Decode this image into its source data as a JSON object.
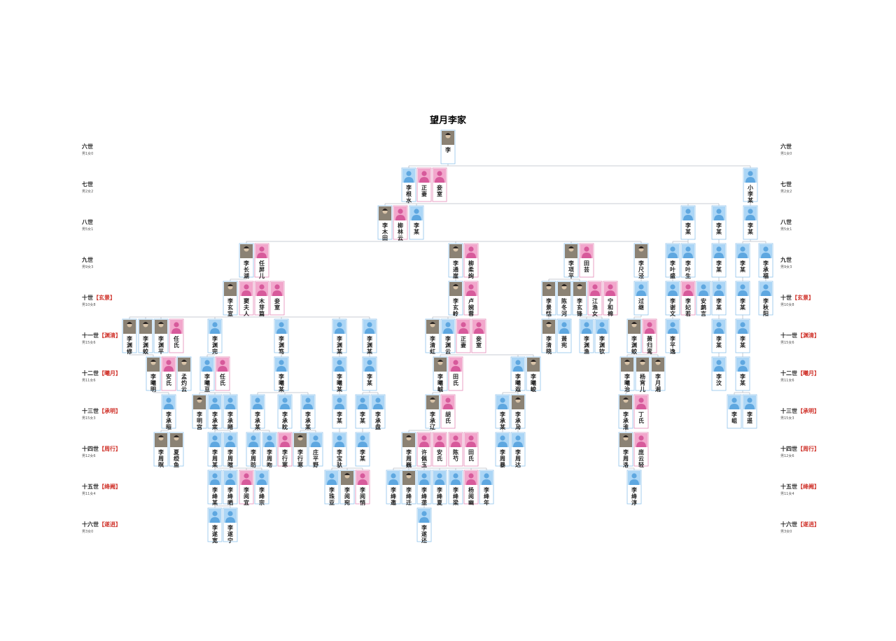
{
  "title": "望月李家",
  "generations": [
    {
      "label": "六世",
      "tag": null,
      "count": "男1女0"
    },
    {
      "label": "七世",
      "tag": null,
      "count": "男2女2"
    },
    {
      "label": "八世",
      "tag": null,
      "count": "男5女1"
    },
    {
      "label": "九世",
      "tag": null,
      "count": "男9女3"
    },
    {
      "label": "十世",
      "tag": "【玄景】",
      "count": "男10女8"
    },
    {
      "label": "十一世",
      "tag": "【渊清】",
      "count": "男15女6"
    },
    {
      "label": "十二世",
      "tag": "【曦月】",
      "count": "男11女6"
    },
    {
      "label": "十三世",
      "tag": "【承明】",
      "count": "男15女3"
    },
    {
      "label": "十四世",
      "tag": "【周行】",
      "count": "男12女6"
    },
    {
      "label": "十五世",
      "tag": "【绛阙】",
      "count": "男11女4"
    },
    {
      "label": "十六世",
      "tag": "【遂逍】",
      "count": "男3女0"
    }
  ],
  "rows": [
    [
      "李"
    ],
    [
      "李根水",
      "正妻",
      "妾室",
      "小李某"
    ],
    [
      "李木田",
      "柳林云",
      "李某",
      "李某",
      "李某",
      "李某"
    ],
    [
      "李长湖",
      "任屏儿",
      "李通崖",
      "柳柔绚",
      "李项平",
      "田芸",
      "李尺泾",
      "李叶盛",
      "李叶生",
      "李某",
      "李某",
      "李承福"
    ],
    [
      "李玄宣",
      "窦夫人",
      "木芽篇",
      "妾室",
      "李玄岭",
      "卢婉蓉",
      "李景恬",
      "陈冬河",
      "李玄锋",
      "江渔女",
      "宁和棉",
      "过继",
      "李谢文",
      "李妃若",
      "安鹧言",
      "李某",
      "李某",
      "李秋阳"
    ],
    [
      "李渊修",
      "李渊蛟",
      "李渊平",
      "任氏",
      "李渊完",
      "李渊笃",
      "李渊某",
      "李渊某",
      "李清虹",
      "李渊云",
      "正妻",
      "妾室",
      "李清晓",
      "萧宪",
      "李渊渔",
      "李渊钦",
      "李渊蛟",
      "萧归鸾",
      "李平逸",
      "李某",
      "李某"
    ],
    [
      "李曦明",
      "安氏",
      "孟灼云",
      "李曦亘",
      "任氏",
      "李曦某",
      "李曦某",
      "李某",
      "李曦峸",
      "田氏",
      "李曦遐",
      "李曦峻",
      "李曦治",
      "杨宵儿",
      "李月湘",
      "李汶",
      "李某"
    ],
    [
      "李承暟",
      "李明宫",
      "李承寀",
      "李承睹",
      "李承某",
      "李承眈",
      "李承某",
      "李某",
      "李某",
      "李承盘",
      "李承辽",
      "胡氏",
      "李承某",
      "李承夃",
      "李承淮",
      "丁氏",
      "李岨",
      "李遥"
    ],
    [
      "李周暝",
      "夏绶鱼",
      "李周某",
      "李周暄",
      "李周昉",
      "李周昒",
      "李行寒",
      "李行寒",
      "庄平野",
      "李宝驮",
      "李某",
      "李周巍",
      "许佩玉",
      "安氏",
      "陈芍",
      "田氏",
      "李周暴",
      "李周达",
      "李周洛",
      "庞云轻"
    ],
    [
      "李绛某",
      "李绛晒",
      "李阅宜",
      "李绛宗",
      "李珠亚",
      "李阅宛",
      "李阅悄",
      "李绛邀",
      "李绛迁",
      "李绛垄",
      "李绛夏",
      "李绛梁",
      "杨阅幽",
      "李绛年",
      "李绛淳"
    ],
    [
      "李遂宽",
      "李遂宁",
      "李遂还"
    ]
  ]
}
